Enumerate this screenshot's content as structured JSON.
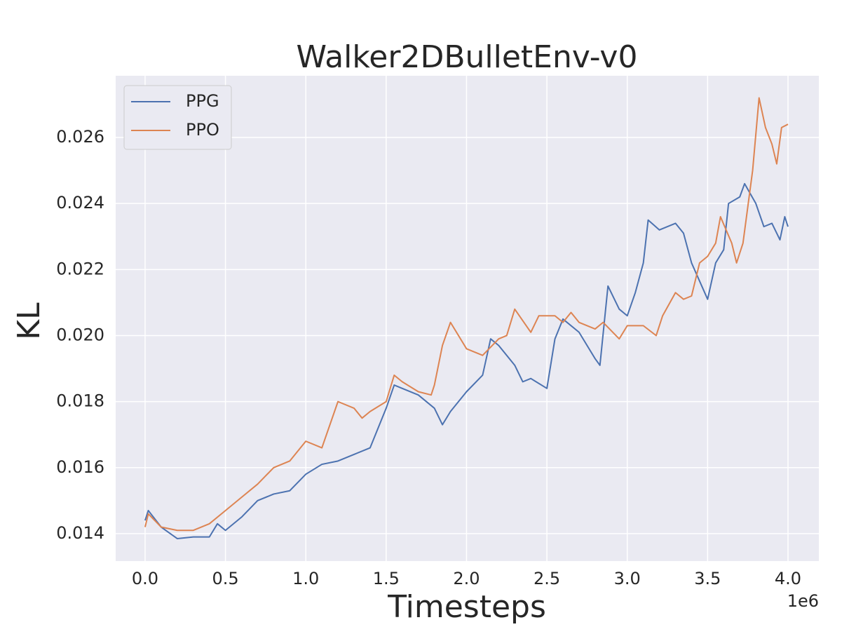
{
  "chart_data": {
    "type": "line",
    "title": "Walker2DBulletEnv-v0",
    "x_label": "Timesteps",
    "y_label": "KL",
    "x_offset_label": "1e6",
    "xlim": [
      -0.183,
      4.192
    ],
    "ylim": [
      0.01317,
      0.02787
    ],
    "xticks": [
      {
        "value": 0,
        "label": "0.0"
      },
      0.5,
      {
        "value": 1,
        "label": "1.0"
      },
      1.5,
      {
        "value": 2,
        "label": "2.0"
      },
      2.5,
      {
        "value": 3,
        "label": "3.0"
      },
      3.5,
      {
        "value": 4,
        "label": "4.0"
      }
    ],
    "yticks": [
      0.014,
      0.016,
      0.018,
      {
        "value": 0.02,
        "label": "0.020"
      },
      0.022,
      0.024,
      0.026
    ],
    "grid": true,
    "legend": "upper-left",
    "series": [
      {
        "name": "PPG",
        "color": "#4c72b0",
        "x": [
          0,
          0.02,
          0.1,
          0.2,
          0.3,
          0.4,
          0.45,
          0.5,
          0.6,
          0.7,
          0.8,
          0.9,
          1.0,
          1.1,
          1.2,
          1.3,
          1.4,
          1.5,
          1.55,
          1.6,
          1.7,
          1.8,
          1.85,
          1.9,
          2.0,
          2.1,
          2.15,
          2.2,
          2.3,
          2.35,
          2.4,
          2.5,
          2.55,
          2.6,
          2.7,
          2.8,
          2.83,
          2.88,
          2.95,
          3.0,
          3.05,
          3.1,
          3.13,
          3.2,
          3.3,
          3.35,
          3.4,
          3.5,
          3.55,
          3.6,
          3.63,
          3.7,
          3.73,
          3.8,
          3.85,
          3.9,
          3.95,
          3.98,
          4.0
        ],
        "values": [
          0.0144,
          0.0147,
          0.0142,
          0.01385,
          0.0139,
          0.0139,
          0.0143,
          0.0141,
          0.0145,
          0.015,
          0.0152,
          0.0153,
          0.0158,
          0.0161,
          0.0162,
          0.0164,
          0.0166,
          0.0178,
          0.0185,
          0.0184,
          0.0182,
          0.0178,
          0.0173,
          0.0177,
          0.0183,
          0.0188,
          0.0199,
          0.0197,
          0.0191,
          0.0186,
          0.0187,
          0.0184,
          0.0199,
          0.0205,
          0.0201,
          0.0193,
          0.0191,
          0.0215,
          0.0208,
          0.0206,
          0.0213,
          0.0222,
          0.0235,
          0.0232,
          0.0234,
          0.0231,
          0.0222,
          0.0211,
          0.0222,
          0.0226,
          0.024,
          0.0242,
          0.0246,
          0.024,
          0.0233,
          0.0234,
          0.0229,
          0.0236,
          0.0233
        ]
      },
      {
        "name": "PPO",
        "color": "#dd8452",
        "x": [
          0,
          0.02,
          0.1,
          0.2,
          0.3,
          0.4,
          0.5,
          0.6,
          0.7,
          0.8,
          0.9,
          1.0,
          1.1,
          1.2,
          1.3,
          1.35,
          1.4,
          1.5,
          1.55,
          1.6,
          1.7,
          1.78,
          1.8,
          1.85,
          1.9,
          2.0,
          2.1,
          2.2,
          2.25,
          2.3,
          2.4,
          2.45,
          2.55,
          2.6,
          2.65,
          2.7,
          2.8,
          2.85,
          2.95,
          3.0,
          3.1,
          3.18,
          3.22,
          3.3,
          3.35,
          3.4,
          3.45,
          3.5,
          3.55,
          3.58,
          3.65,
          3.68,
          3.72,
          3.78,
          3.82,
          3.86,
          3.9,
          3.93,
          3.96,
          4.0
        ],
        "values": [
          0.0142,
          0.0146,
          0.0142,
          0.0141,
          0.0141,
          0.0143,
          0.0147,
          0.0151,
          0.0155,
          0.016,
          0.0162,
          0.0168,
          0.0166,
          0.018,
          0.0178,
          0.0175,
          0.0177,
          0.018,
          0.0188,
          0.0186,
          0.0183,
          0.0182,
          0.0185,
          0.0197,
          0.0204,
          0.0196,
          0.0194,
          0.0199,
          0.02,
          0.0208,
          0.0201,
          0.0206,
          0.0206,
          0.0204,
          0.0207,
          0.0204,
          0.0202,
          0.0204,
          0.0199,
          0.0203,
          0.0203,
          0.02,
          0.0206,
          0.0213,
          0.0211,
          0.0212,
          0.0222,
          0.0224,
          0.0228,
          0.0236,
          0.0228,
          0.0222,
          0.0228,
          0.025,
          0.0272,
          0.0263,
          0.0258,
          0.0252,
          0.0263,
          0.0264
        ]
      }
    ]
  }
}
